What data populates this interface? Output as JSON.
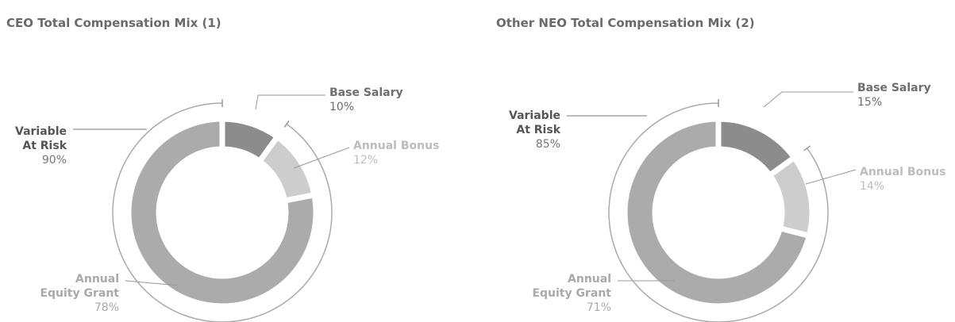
{
  "chart_data": [
    {
      "type": "pie",
      "title": "CEO Total Compensation Mix (1)",
      "categories": [
        "Base Salary",
        "Annual Bonus",
        "Annual\nEquity Grant"
      ],
      "values": [
        10,
        12,
        78
      ],
      "value_labels": [
        "10%",
        "12%",
        "78%"
      ],
      "colors": [
        "#8c8c8c",
        "#cdcdcd",
        "#ababab"
      ],
      "annotation": {
        "text": "Variable\nAt Risk",
        "value": 90,
        "value_label": "90%"
      }
    },
    {
      "type": "pie",
      "title": "Other NEO Total Compensation Mix (2)",
      "categories": [
        "Base Salary",
        "Annual Bonus",
        "Annual\nEquity Grant"
      ],
      "values": [
        15,
        14,
        71
      ],
      "value_labels": [
        "15%",
        "14%",
        "71%"
      ],
      "colors": [
        "#8c8c8c",
        "#cdcdcd",
        "#ababab"
      ],
      "annotation": {
        "text": "Variable\nAt Risk",
        "value": 85,
        "value_label": "85%"
      }
    }
  ]
}
